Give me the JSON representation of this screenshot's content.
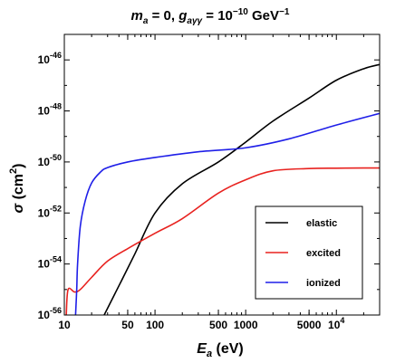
{
  "chart_data": {
    "type": "line",
    "title": {
      "m_sym": "m",
      "m_sub": "a",
      "eq1": " = 0,  ",
      "g_sym": "g",
      "g_sub": "aγγ",
      "eq2": " = 10",
      "exp": "−10",
      "unit": " GeV",
      "unit_exp": "−1"
    },
    "xlabel": {
      "sym": "E",
      "sub": "a",
      "unit": " (eV)"
    },
    "ylabel": {
      "sym": "σ",
      "unit": " (cm",
      "unit_exp": "2",
      "close": ")"
    },
    "x_scale": "log",
    "y_scale": "log",
    "xlim": [
      10,
      30000
    ],
    "ylim": [
      1e-56,
      1e-45
    ],
    "x_ticks": [
      {
        "value": 10,
        "label": "10"
      },
      {
        "value": 50,
        "label": "50"
      },
      {
        "value": 100,
        "label": "100"
      },
      {
        "value": 500,
        "label": "500"
      },
      {
        "value": 1000,
        "label": "1000"
      },
      {
        "value": 5000,
        "label": "5000"
      },
      {
        "value": 10000,
        "label": "10",
        "exp": "4"
      }
    ],
    "y_ticks": [
      {
        "value": 1e-56,
        "base": "10",
        "exp": "-56"
      },
      {
        "value": 1e-54,
        "base": "10",
        "exp": "-54"
      },
      {
        "value": 1e-52,
        "base": "10",
        "exp": "-52"
      },
      {
        "value": 1e-50,
        "base": "10",
        "exp": "-50"
      },
      {
        "value": 1e-48,
        "base": "10",
        "exp": "-48"
      },
      {
        "value": 1e-46,
        "base": "10",
        "exp": "-46"
      }
    ],
    "legend": {
      "position": "bottom-right"
    },
    "series": [
      {
        "name": "elastic",
        "color": "#000000",
        "x": [
          27.5,
          40,
          60,
          100,
          200,
          500,
          1000,
          2000,
          5000,
          10000,
          20000,
          30000
        ],
        "y": [
          1e-56,
          1.4e-55,
          2.5e-54,
          1e-52,
          1.4e-51,
          1e-50,
          6e-50,
          4e-49,
          3.2e-48,
          1.6e-47,
          4.5e-47,
          6.6e-47
        ]
      },
      {
        "name": "excited",
        "color": "#e8221f",
        "x": [
          10.5,
          11,
          13,
          15,
          20,
          30,
          50,
          100,
          200,
          500,
          1000,
          2000,
          5000,
          10000,
          20000,
          30000
        ],
        "y": [
          1e-56,
          1e-55,
          8e-56,
          1e-55,
          3e-55,
          1.3e-54,
          4e-54,
          1.6e-53,
          6e-53,
          6e-52,
          2e-51,
          4.5e-51,
          5.5e-51,
          5.7e-51,
          5.8e-51,
          5.8e-51
        ]
      },
      {
        "name": "ionized",
        "color": "#1f1fe8",
        "x": [
          13.3,
          13.7,
          14,
          15,
          17,
          20,
          25,
          30,
          50,
          100,
          300,
          1000,
          3000,
          10000,
          30000
        ],
        "y": [
          1e-56,
          1e-55,
          1e-54,
          3e-53,
          3e-52,
          1.5e-51,
          4e-51,
          6e-51,
          1e-50,
          1.5e-50,
          2.5e-50,
          3.6e-50,
          8e-50,
          2.8e-49,
          8e-49
        ]
      }
    ]
  }
}
